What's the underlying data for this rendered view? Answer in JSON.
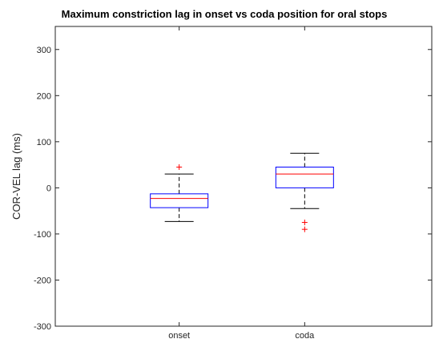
{
  "chart_data": {
    "type": "box",
    "title": "Maximum constriction lag in onset vs coda position for oral stops",
    "xlabel": "",
    "ylabel": "COR-VEL lag (ms)",
    "ylim": [
      -300,
      350
    ],
    "yticks": [
      -300,
      -200,
      -100,
      0,
      100,
      200,
      300
    ],
    "ytick_labels": [
      "-300",
      "-200",
      "-100",
      "0",
      "100",
      "200",
      "300"
    ],
    "categories": [
      "onset",
      "coda"
    ],
    "boxes": [
      {
        "category": "onset",
        "whisker_low": -73,
        "q1": -43,
        "median": -23,
        "q3": -13,
        "whisker_high": 30,
        "outliers": [
          45
        ]
      },
      {
        "category": "coda",
        "whisker_low": -45,
        "q1": 0,
        "median": 30,
        "q3": 45,
        "whisker_high": 75,
        "outliers": [
          -75,
          -90
        ]
      }
    ],
    "grid": false,
    "colors": {
      "box": "#0000ff",
      "median": "#ff0000",
      "whisker": "#000000",
      "outlier": "#ff0000",
      "axis": "#262626"
    }
  }
}
